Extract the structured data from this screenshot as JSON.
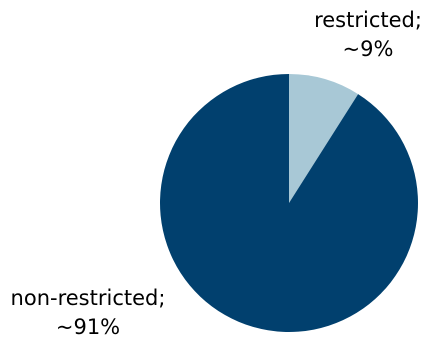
{
  "chart_data": {
    "type": "pie",
    "slices": [
      {
        "label_line1": "restricted;",
        "label_line2": "~9%",
        "value": 9,
        "color": "#a8c8d6"
      },
      {
        "label_line1": "non-restricted;",
        "label_line2": "~91%",
        "value": 91,
        "color": "#01406e"
      }
    ]
  }
}
